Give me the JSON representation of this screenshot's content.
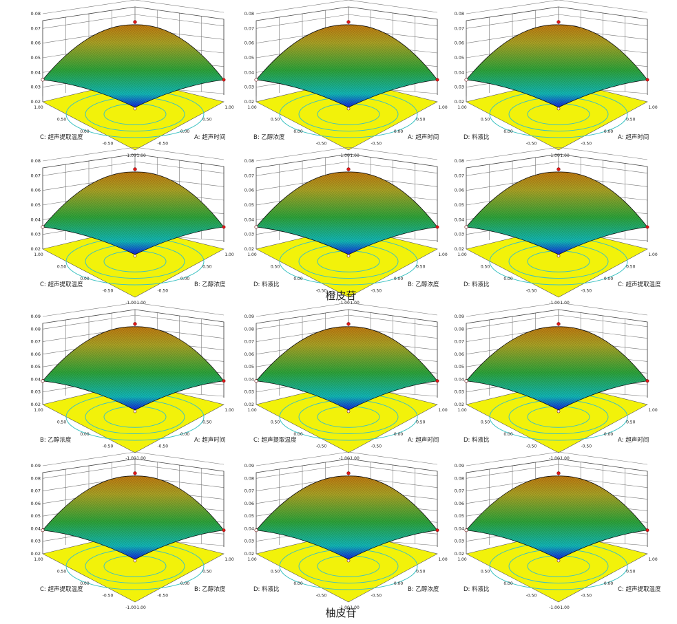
{
  "captions": [
    "橙皮苷",
    "柚皮苷"
  ],
  "colors": {
    "floor": "#f2f20a",
    "contour": "#3cc2c2",
    "wall_grid": "#777777",
    "point_red": "#e01818",
    "low": "#1428d8",
    "mid1": "#12b7b7",
    "mid2": "#2ea43a",
    "high": "#c89010"
  },
  "chart_data": [
    {
      "type": "surface",
      "group": "橙皮苷",
      "zticks": [
        "0.02",
        "0.03",
        "0.04",
        "0.05",
        "0.06",
        "0.07",
        "0.08"
      ],
      "xaxis": {
        "label": "A: 超声时间",
        "ticks": [
          "1.00",
          "0.50",
          "0.00",
          "-0.50",
          "-1.00"
        ]
      },
      "yaxis": {
        "label": "C: 超声提取温度",
        "ticks": [
          "1.00",
          "0.50",
          "0.00",
          "-0.50",
          "-1.00"
        ]
      },
      "zrange": [
        0.02,
        0.08
      ],
      "peak": 0.076,
      "corner_ends": [
        0.036,
        0.036
      ]
    },
    {
      "type": "surface",
      "group": "橙皮苷",
      "zticks": [
        "0.02",
        "0.03",
        "0.04",
        "0.05",
        "0.06",
        "0.07",
        "0.08"
      ],
      "xaxis": {
        "label": "A: 超声时间",
        "ticks": [
          "1.00",
          "0.50",
          "0.00",
          "-0.50",
          "-1.00"
        ]
      },
      "yaxis": {
        "label": "B: 乙醇浓度",
        "ticks": [
          "1.00",
          "0.50",
          "0.00",
          "-0.50",
          "-1.00"
        ]
      },
      "zrange": [
        0.02,
        0.08
      ],
      "peak": 0.076,
      "corner_ends": [
        0.036,
        0.036
      ]
    },
    {
      "type": "surface",
      "group": "橙皮苷",
      "zticks": [
        "0.02",
        "0.03",
        "0.04",
        "0.05",
        "0.06",
        "0.07",
        "0.08"
      ],
      "xaxis": {
        "label": "A: 超声时间",
        "ticks": [
          "1.00",
          "0.50",
          "0.00",
          "-0.50",
          "-1.00"
        ]
      },
      "yaxis": {
        "label": "D: 料液比",
        "ticks": [
          "1.00",
          "0.50",
          "0.00",
          "-0.50",
          "-1.00"
        ]
      },
      "zrange": [
        0.02,
        0.08
      ],
      "peak": 0.076,
      "corner_ends": [
        0.036,
        0.036
      ]
    },
    {
      "type": "surface",
      "group": "橙皮苷",
      "zticks": [
        "0.02",
        "0.03",
        "0.04",
        "0.05",
        "0.06",
        "0.07",
        "0.08"
      ],
      "xaxis": {
        "label": "B: 乙醇浓度",
        "ticks": [
          "1.00",
          "0.50",
          "0.00",
          "-0.50",
          "-1.00"
        ]
      },
      "yaxis": {
        "label": "C: 超声提取温度",
        "ticks": [
          "1.00",
          "0.50",
          "0.00",
          "-0.50",
          "-1.00"
        ]
      },
      "zrange": [
        0.02,
        0.08
      ],
      "peak": 0.076,
      "corner_ends": [
        0.036,
        0.036
      ]
    },
    {
      "type": "surface",
      "group": "橙皮苷",
      "zticks": [
        "0.02",
        "0.03",
        "0.04",
        "0.05",
        "0.06",
        "0.07",
        "0.08"
      ],
      "xaxis": {
        "label": "B: 乙醇浓度",
        "ticks": [
          "1.00",
          "0.50",
          "0.00",
          "-0.50",
          "-1.00"
        ]
      },
      "yaxis": {
        "label": "D: 料液比",
        "ticks": [
          "1.00",
          "0.50",
          "0.00",
          "-0.50",
          "-1.00"
        ]
      },
      "zrange": [
        0.02,
        0.08
      ],
      "peak": 0.076,
      "corner_ends": [
        0.036,
        0.036
      ]
    },
    {
      "type": "surface",
      "group": "橙皮苷",
      "zticks": [
        "0.02",
        "0.03",
        "0.04",
        "0.05",
        "0.06",
        "0.07",
        "0.08"
      ],
      "xaxis": {
        "label": "C: 超声提取温度",
        "ticks": [
          "1.00",
          "0.50",
          "0.00",
          "-0.50",
          "-1.00"
        ]
      },
      "yaxis": {
        "label": "D: 料液比",
        "ticks": [
          "1.00",
          "0.50",
          "0.00",
          "-0.50",
          "-1.00"
        ]
      },
      "zrange": [
        0.02,
        0.08
      ],
      "peak": 0.076,
      "corner_ends": [
        0.036,
        0.036
      ]
    },
    {
      "type": "surface",
      "group": "柚皮苷",
      "zticks": [
        "0.02",
        "0.03",
        "0.04",
        "0.05",
        "0.06",
        "0.07",
        "0.08",
        "0.09"
      ],
      "xaxis": {
        "label": "A: 超声时间",
        "ticks": [
          "1.00",
          "0.50",
          "0.00",
          "-0.50",
          "-1.00"
        ]
      },
      "yaxis": {
        "label": "B: 乙醇浓度",
        "ticks": [
          "1.00",
          "0.50",
          "0.00",
          "-0.50",
          "-1.00"
        ]
      },
      "zrange": [
        0.02,
        0.09
      ],
      "peak": 0.086,
      "corner_ends": [
        0.04,
        0.04
      ]
    },
    {
      "type": "surface",
      "group": "柚皮苷",
      "zticks": [
        "0.02",
        "0.03",
        "0.04",
        "0.05",
        "0.06",
        "0.07",
        "0.08",
        "0.09"
      ],
      "xaxis": {
        "label": "A: 超声时间",
        "ticks": [
          "1.00",
          "0.50",
          "0.00",
          "-0.50",
          "-1.00"
        ]
      },
      "yaxis": {
        "label": "C: 超声提取温度",
        "ticks": [
          "1.00",
          "0.50",
          "0.00",
          "-0.50",
          "-1.00"
        ]
      },
      "zrange": [
        0.02,
        0.09
      ],
      "peak": 0.086,
      "corner_ends": [
        0.04,
        0.04
      ]
    },
    {
      "type": "surface",
      "group": "柚皮苷",
      "zticks": [
        "0.02",
        "0.03",
        "0.04",
        "0.05",
        "0.06",
        "0.07",
        "0.08",
        "0.09"
      ],
      "xaxis": {
        "label": "A: 超声时间",
        "ticks": [
          "1.00",
          "0.50",
          "0.00",
          "-0.50",
          "-1.00"
        ]
      },
      "yaxis": {
        "label": "D: 料液比",
        "ticks": [
          "1.00",
          "0.50",
          "0.00",
          "-0.50",
          "-1.00"
        ]
      },
      "zrange": [
        0.02,
        0.09
      ],
      "peak": 0.086,
      "corner_ends": [
        0.04,
        0.04
      ]
    },
    {
      "type": "surface",
      "group": "柚皮苷",
      "zticks": [
        "0.02",
        "0.03",
        "0.04",
        "0.05",
        "0.06",
        "0.07",
        "0.08",
        "0.09"
      ],
      "xaxis": {
        "label": "B: 乙醇浓度",
        "ticks": [
          "1.00",
          "0.50",
          "0.00",
          "-0.50",
          "-1.00"
        ]
      },
      "yaxis": {
        "label": "C: 超声提取温度",
        "ticks": [
          "1.00",
          "0.50",
          "0.00",
          "-0.50",
          "-1.00"
        ]
      },
      "zrange": [
        0.02,
        0.09
      ],
      "peak": 0.086,
      "corner_ends": [
        0.04,
        0.04
      ]
    },
    {
      "type": "surface",
      "group": "柚皮苷",
      "zticks": [
        "0.02",
        "0.03",
        "0.04",
        "0.05",
        "0.06",
        "0.07",
        "0.08",
        "0.09"
      ],
      "xaxis": {
        "label": "B: 乙醇浓度",
        "ticks": [
          "1.00",
          "0.50",
          "0.00",
          "-0.50",
          "-1.00"
        ]
      },
      "yaxis": {
        "label": "D: 料液比",
        "ticks": [
          "1.00",
          "0.50",
          "0.00",
          "-0.50",
          "-1.00"
        ]
      },
      "zrange": [
        0.02,
        0.09
      ],
      "peak": 0.086,
      "corner_ends": [
        0.04,
        0.04
      ]
    },
    {
      "type": "surface",
      "group": "柚皮苷",
      "zticks": [
        "0.02",
        "0.03",
        "0.04",
        "0.05",
        "0.06",
        "0.07",
        "0.08",
        "0.09"
      ],
      "xaxis": {
        "label": "C: 超声提取温度",
        "ticks": [
          "1.00",
          "0.50",
          "0.00",
          "-0.50",
          "-1.00"
        ]
      },
      "yaxis": {
        "label": "D: 料液比",
        "ticks": [
          "1.00",
          "0.50",
          "0.00",
          "-0.50",
          "-1.00"
        ]
      },
      "zrange": [
        0.02,
        0.09
      ],
      "peak": 0.086,
      "corner_ends": [
        0.04,
        0.04
      ]
    }
  ]
}
